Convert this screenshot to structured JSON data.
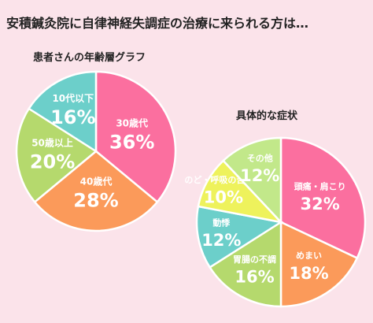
{
  "page": {
    "title": "安積鍼灸院に自律神経失調症の治療に来られる方は…"
  },
  "chart_data": [
    {
      "type": "pie",
      "title": "患者さんの年齢層グラフ",
      "slices": [
        {
          "label": "30歳代",
          "value": 36,
          "display": "36%",
          "color": "#fb6f9f"
        },
        {
          "label": "40歳代",
          "value": 28,
          "display": "28%",
          "color": "#fb9a5a"
        },
        {
          "label": "50歳以上",
          "value": 20,
          "display": "20%",
          "color": "#b5d96d"
        },
        {
          "label": "10代以下",
          "value": 16,
          "display": "16%",
          "color": "#6ccfca"
        }
      ]
    },
    {
      "type": "pie",
      "title": "具体的な症状",
      "slices": [
        {
          "label": "頭痛・肩こり",
          "value": 32,
          "display": "32%",
          "color": "#fb6f9f"
        },
        {
          "label": "めまい",
          "value": 18,
          "display": "18%",
          "color": "#fb9a5a"
        },
        {
          "label": "胃腸の不調",
          "value": 16,
          "display": "16%",
          "color": "#b5d96d"
        },
        {
          "label": "動悸",
          "value": 12,
          "display": "12%",
          "color": "#6ccfca"
        },
        {
          "label": "のど・呼吸の苦しさ",
          "value": 10,
          "display": "10%",
          "color": "#eef25c"
        },
        {
          "label": "その他",
          "value": 12,
          "display": "12%",
          "color": "#c2e88a"
        }
      ]
    }
  ]
}
